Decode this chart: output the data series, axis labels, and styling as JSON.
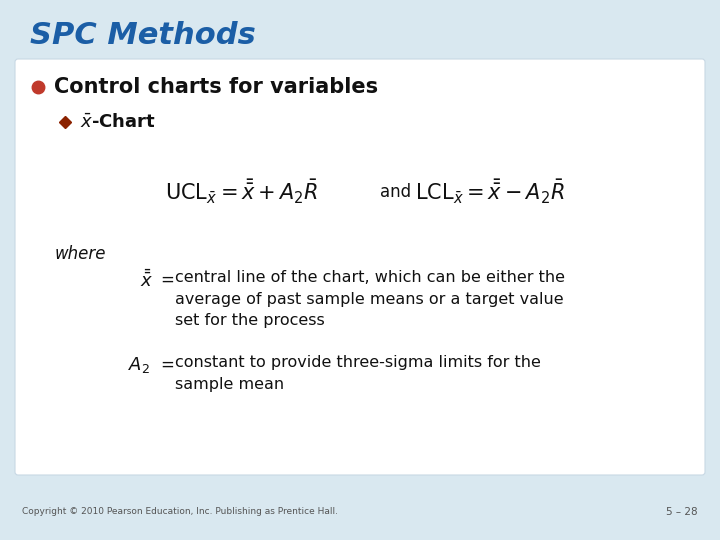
{
  "title": "SPC Methods",
  "title_color": "#1B5EA6",
  "title_fontsize": 22,
  "bg_color": "#D9E8F0",
  "card_color": "#FFFFFF",
  "bullet1_text": "Control charts for variables",
  "bullet1_marker_color": "#C0392B",
  "bullet2_marker_color": "#8B2200",
  "where_text": "where",
  "footer_text": "Copyright © 2010 Pearson Education, Inc. Publishing as Prentice Hall.",
  "page_num": "5 – 28",
  "formula_fontsize": 15,
  "body_fontsize": 11.5,
  "bullet1_fontsize": 15,
  "bullet2_fontsize": 13
}
